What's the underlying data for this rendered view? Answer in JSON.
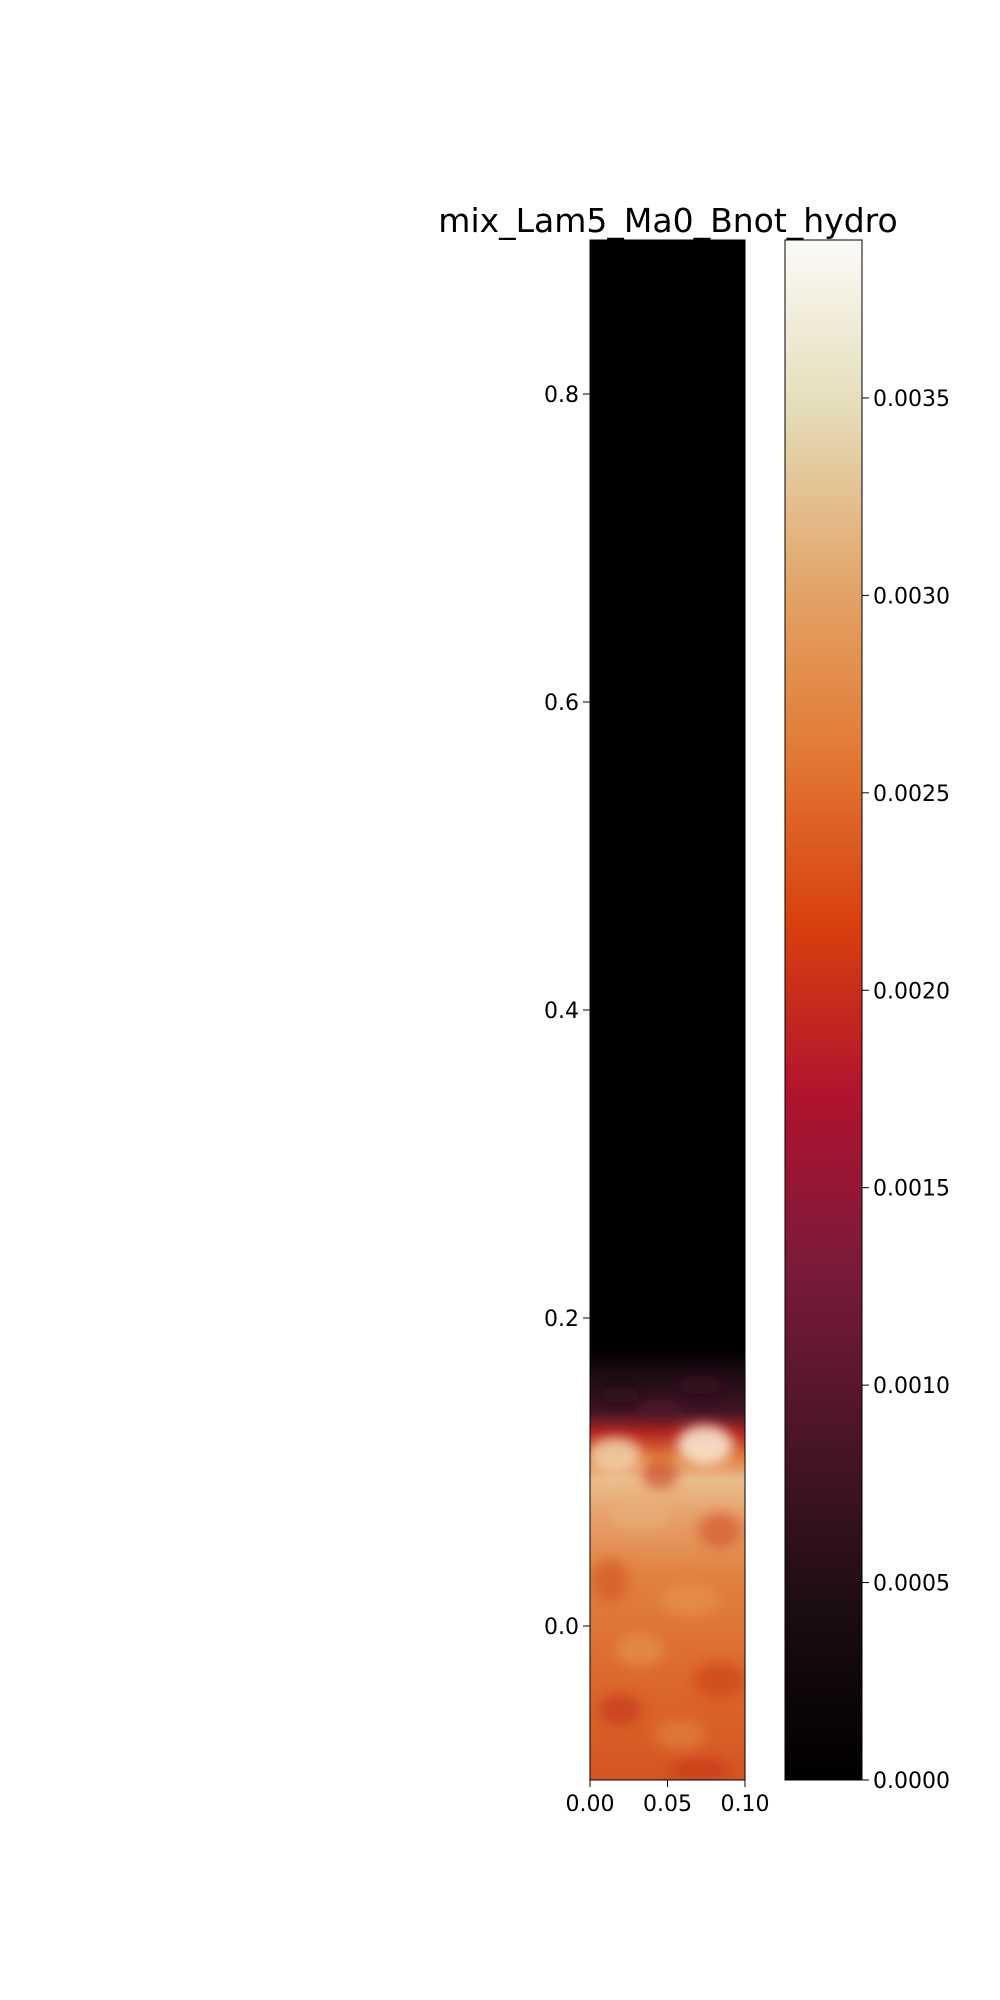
{
  "chart_data": {
    "type": "heatmap",
    "title": "mix_Lam5_Ma0_Bnot_hydro",
    "xlabel": "",
    "ylabel": "",
    "xlim": [
      0.0,
      0.1
    ],
    "ylim": [
      -0.1,
      0.9
    ],
    "x_ticks": [
      "0.00",
      "0.05",
      "0.10"
    ],
    "y_ticks": [
      "0.0",
      "0.2",
      "0.4",
      "0.6",
      "0.8"
    ],
    "x_tick_values": [
      0.0,
      0.05,
      0.1
    ],
    "y_tick_values": [
      0.0,
      0.2,
      0.4,
      0.6,
      0.8
    ],
    "colormap": "black-red-orange-cream",
    "colorbar": {
      "vmin": 0.0,
      "vmax": 0.0039,
      "ticks": [
        "0.0000",
        "0.0005",
        "0.0010",
        "0.0015",
        "0.0020",
        "0.0025",
        "0.0030",
        "0.0035"
      ],
      "tick_values": [
        0.0,
        0.0005,
        0.001,
        0.0015,
        0.002,
        0.0025,
        0.003,
        0.0035
      ],
      "colors": [
        "#000000",
        "#1c0c13",
        "#4a1528",
        "#7b1a3a",
        "#b0132e",
        "#d8400e",
        "#e27a35",
        "#e2a66a",
        "#e5dcb8",
        "#fbfbf7"
      ]
    },
    "field_regions": [
      {
        "y_range": [
          0.165,
          0.9
        ],
        "value_approx": 0.0,
        "description_level": "black"
      },
      {
        "y_range": [
          0.135,
          0.165
        ],
        "value_approx": 0.0007,
        "description_level": "dark maroon"
      },
      {
        "y_range": [
          0.08,
          0.135
        ],
        "value_approx": 0.0032,
        "description_level": "bright"
      },
      {
        "y_range": [
          -0.1,
          0.08
        ],
        "value_approx": 0.0025,
        "description_level": "orange"
      }
    ]
  }
}
